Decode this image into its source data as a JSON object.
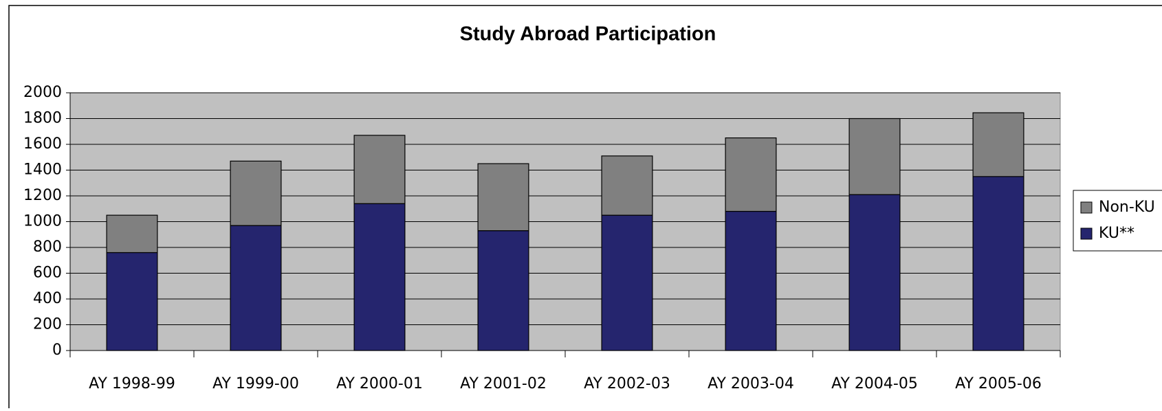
{
  "chart_data": {
    "type": "stacked_bar",
    "title": "Study Abroad Participation",
    "categories": [
      "AY 1998-99",
      "AY 1999-00",
      "AY 2000-01",
      "AY 2001-02",
      "AY 2002-03",
      "AY 2003-04",
      "AY 2004-05",
      "AY 2005-06"
    ],
    "series": [
      {
        "name": "KU**",
        "color": "#25256e",
        "values": [
          760,
          970,
          1140,
          930,
          1050,
          1080,
          1210,
          1350
        ]
      },
      {
        "name": "Non-KU",
        "color": "#808080",
        "values": [
          290,
          500,
          530,
          520,
          460,
          570,
          590,
          495
        ]
      }
    ],
    "ylim": [
      0,
      2000
    ],
    "yticks": [
      0,
      200,
      400,
      600,
      800,
      1000,
      1200,
      1400,
      1600,
      1800,
      2000
    ],
    "grid": true,
    "legend": "right",
    "plot_background": "#c0c0c0"
  }
}
